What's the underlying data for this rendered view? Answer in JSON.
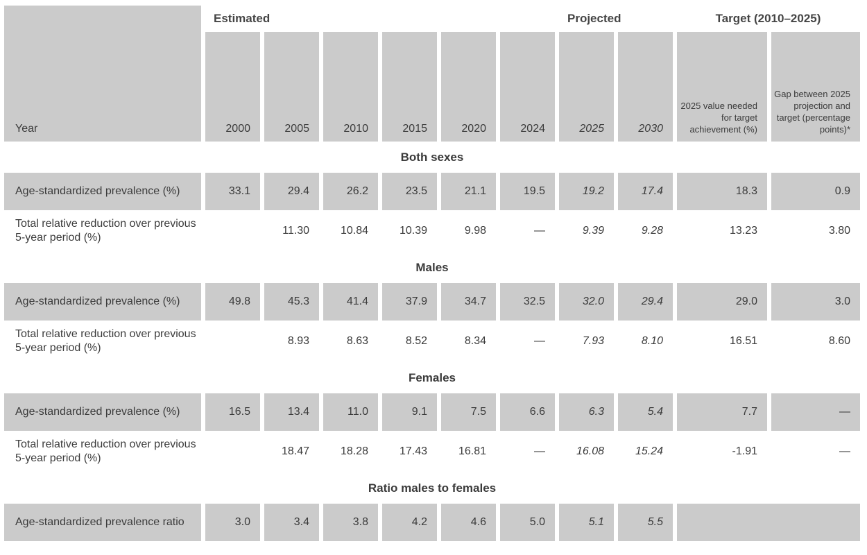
{
  "colors": {
    "cell_background": "#cbcbcb",
    "text": "#3b3b3b",
    "heading_text": "#454545",
    "page_background": "#ffffff"
  },
  "header": {
    "corner_label": "Year",
    "groups": [
      {
        "label": "Estimated",
        "span": 6
      },
      {
        "label": "Projected",
        "span": 2
      },
      {
        "label": "Target (2010–2025)",
        "span": 2
      }
    ],
    "year_columns": [
      {
        "label": "2000",
        "italic": false,
        "small": false
      },
      {
        "label": "2005",
        "italic": false,
        "small": false
      },
      {
        "label": "2010",
        "italic": false,
        "small": false
      },
      {
        "label": "2015",
        "italic": false,
        "small": false
      },
      {
        "label": "2020",
        "italic": false,
        "small": false
      },
      {
        "label": "2024",
        "italic": false,
        "small": false
      },
      {
        "label": "2025",
        "italic": true,
        "small": false
      },
      {
        "label": "2030",
        "italic": true,
        "small": false
      },
      {
        "label": "2025 value needed for target achievement (%)",
        "italic": false,
        "small": true
      },
      {
        "label": "Gap between 2025 projection and target (percentage points)*",
        "italic": false,
        "small": true
      }
    ]
  },
  "italic_value_columns": [
    6,
    7
  ],
  "sections": [
    {
      "title": "Both sexes",
      "rows": [
        {
          "label": "Age-standardized prevalence (%)",
          "shaded": true,
          "values": [
            "33.1",
            "29.4",
            "26.2",
            "23.5",
            "21.1",
            "19.5",
            "19.2",
            "17.4",
            "18.3",
            "0.9"
          ]
        },
        {
          "label": "Total relative reduction over previous 5-year period (%)",
          "shaded": false,
          "values": [
            "",
            "11.30",
            "10.84",
            "10.39",
            "9.98",
            "—",
            "9.39",
            "9.28",
            "13.23",
            "3.80"
          ]
        }
      ]
    },
    {
      "title": "Males",
      "rows": [
        {
          "label": "Age-standardized prevalence (%)",
          "shaded": true,
          "values": [
            "49.8",
            "45.3",
            "41.4",
            "37.9",
            "34.7",
            "32.5",
            "32.0",
            "29.4",
            "29.0",
            "3.0"
          ]
        },
        {
          "label": "Total relative reduction over previous 5-year period (%)",
          "shaded": false,
          "values": [
            "",
            "8.93",
            "8.63",
            "8.52",
            "8.34",
            "—",
            "7.93",
            "8.10",
            "16.51",
            "8.60"
          ]
        }
      ]
    },
    {
      "title": "Females",
      "rows": [
        {
          "label": "Age-standardized prevalence (%)",
          "shaded": true,
          "values": [
            "16.5",
            "13.4",
            "11.0",
            "9.1",
            "7.5",
            "6.6",
            "6.3",
            "5.4",
            "7.7",
            "—"
          ]
        },
        {
          "label": "Total relative reduction over previous 5-year period (%)",
          "shaded": false,
          "values": [
            "",
            "18.47",
            "18.28",
            "17.43",
            "16.81",
            "—",
            "16.08",
            "15.24",
            "-1.91",
            "—"
          ]
        }
      ]
    },
    {
      "title": "Ratio males to females",
      "rows": [
        {
          "label": "Age-standardized prevalence ratio",
          "shaded": true,
          "values": [
            "3.0",
            "3.4",
            "3.8",
            "4.2",
            "4.6",
            "5.0",
            "5.1",
            "5.5"
          ],
          "merged_tail": true
        }
      ]
    }
  ]
}
